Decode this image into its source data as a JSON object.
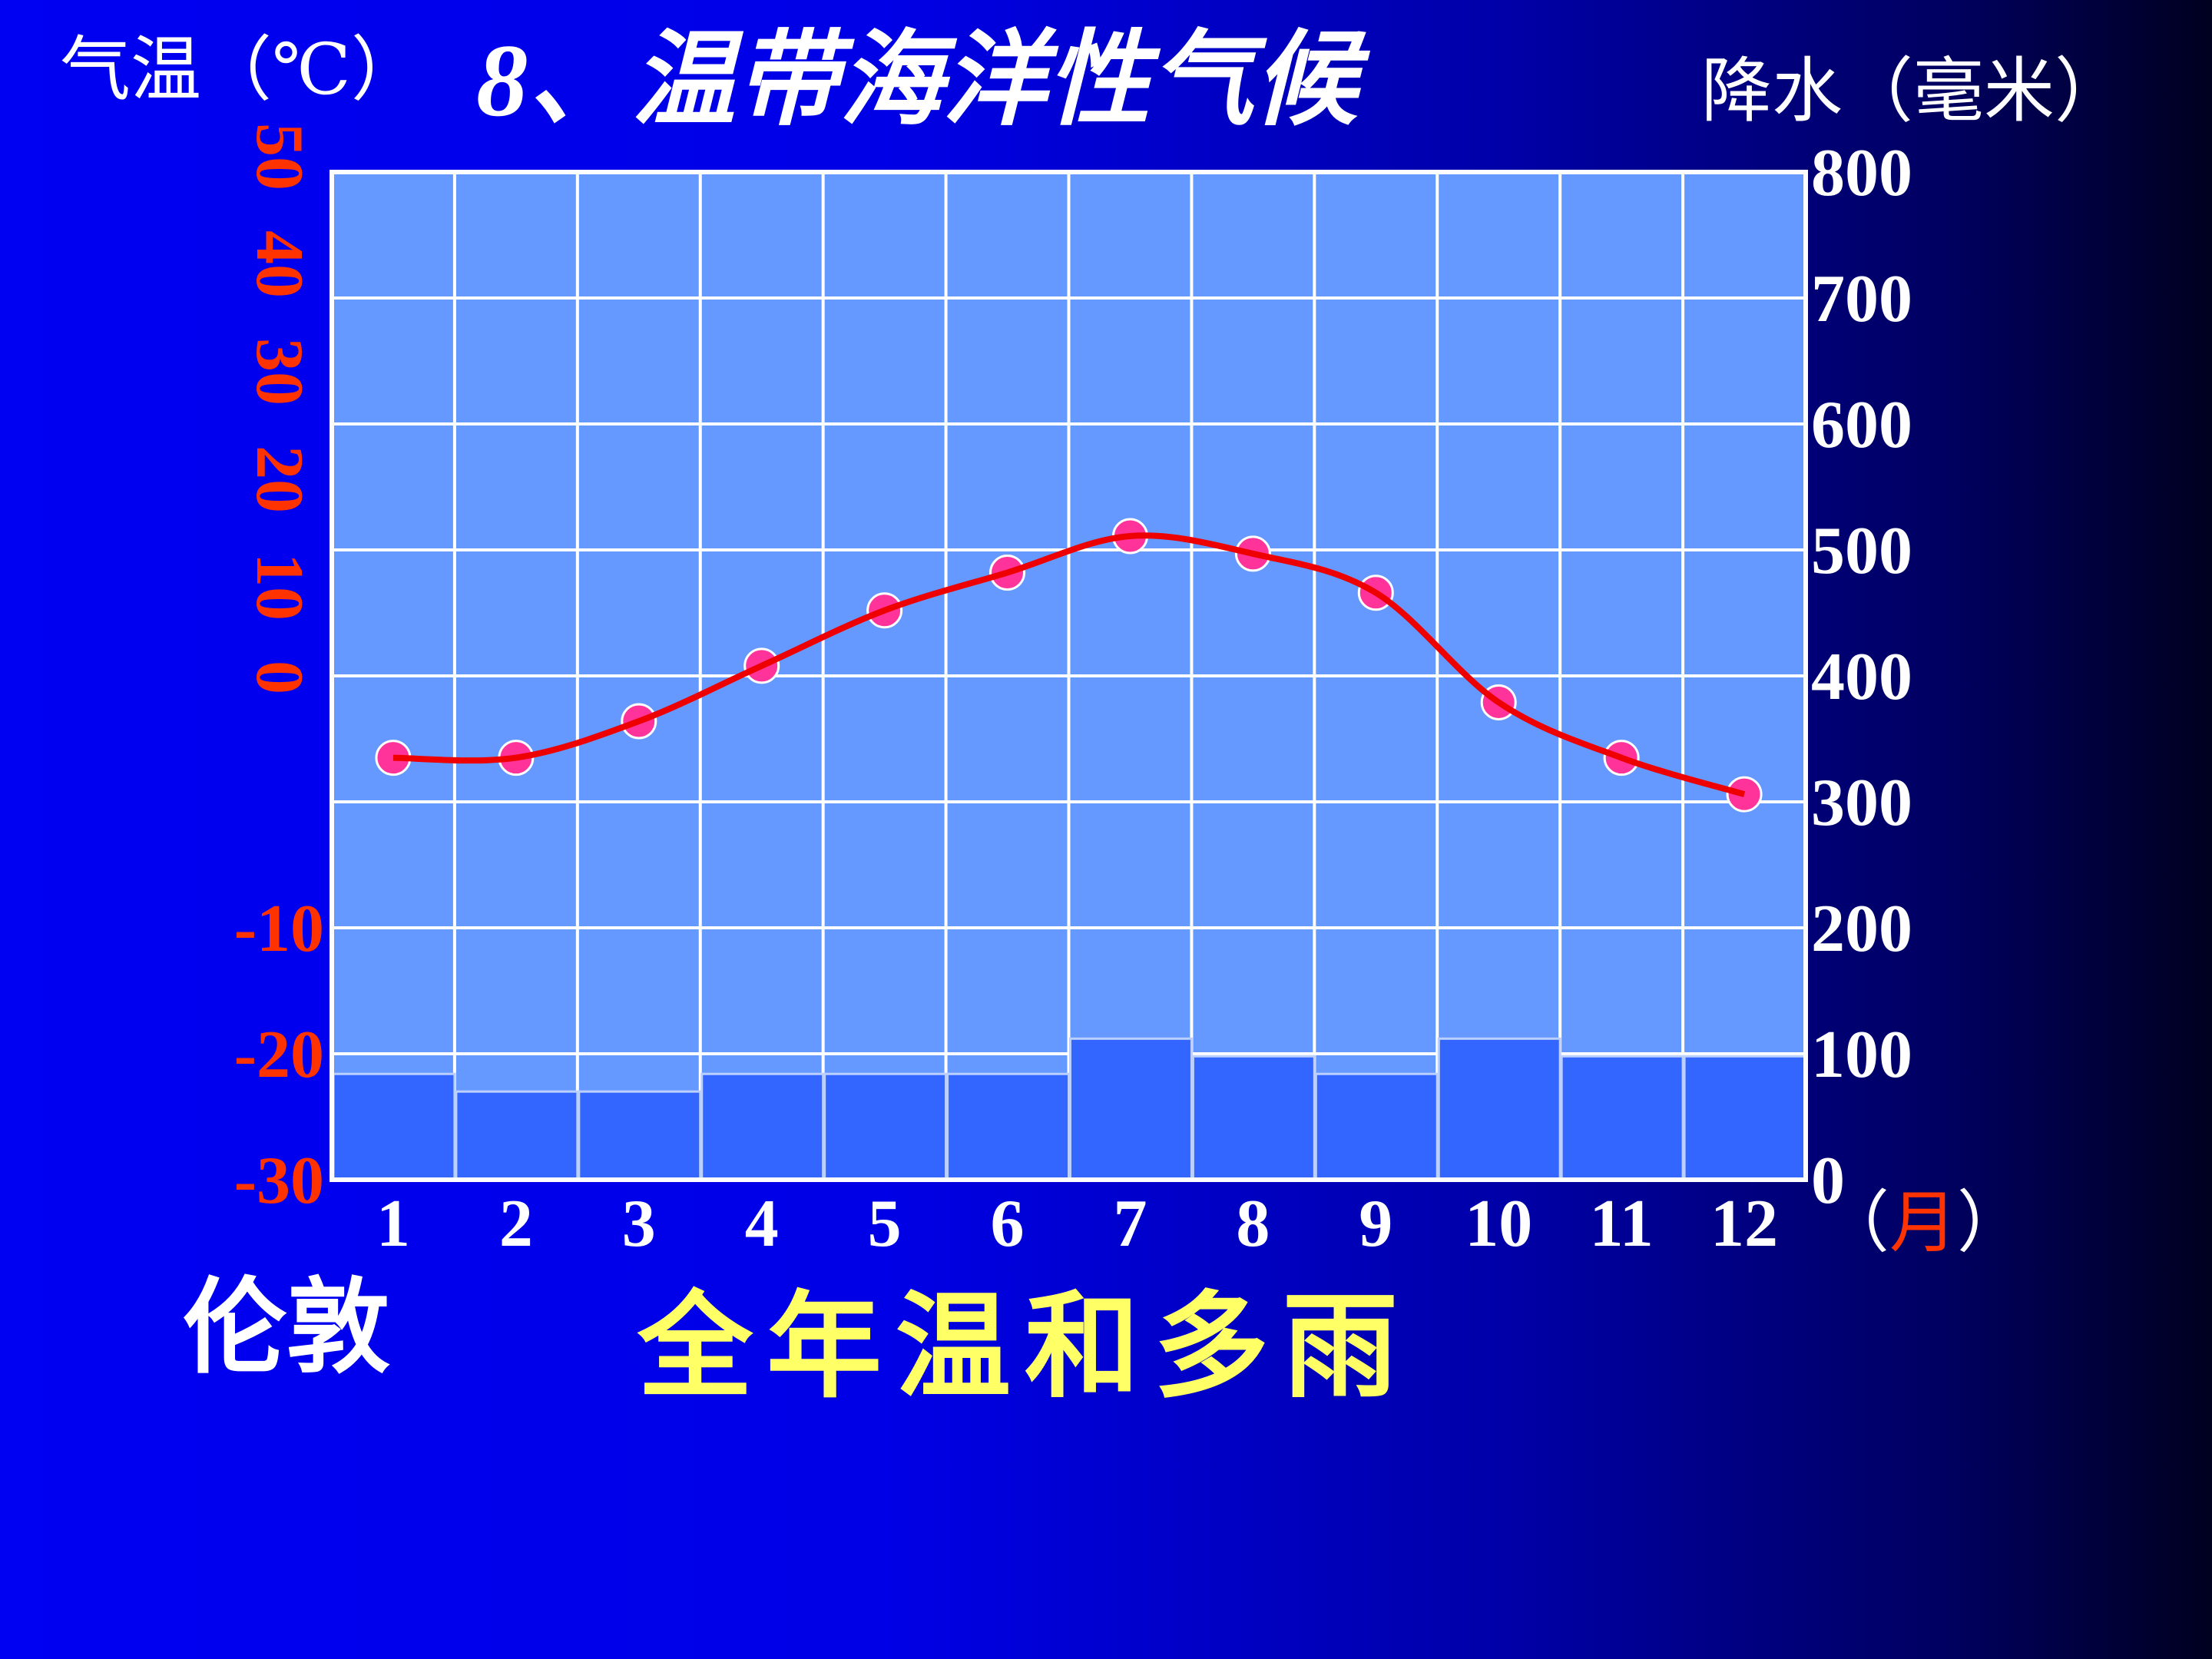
{
  "slide": {
    "title": "8、温带海洋性气候",
    "city": "伦敦",
    "summary": "全年温和多雨"
  },
  "chart_data": {
    "type": "bar+line",
    "title": "8、温带海洋性气候",
    "xlabel": "（月）",
    "xlabel_parts": {
      "open": "（",
      "unit": "月",
      "close": "）"
    },
    "categories": [
      "1",
      "2",
      "3",
      "4",
      "5",
      "6",
      "7",
      "8",
      "9",
      "10",
      "11",
      "12"
    ],
    "left_axis": {
      "label": "气温（℃）",
      "ylim": [
        -30,
        50
      ],
      "rotated_ticks": [
        "50",
        "40",
        "30",
        "20",
        "10",
        "0"
      ],
      "ticks": [
        "-10",
        "-20",
        "-30"
      ]
    },
    "right_axis": {
      "label": "降水（毫米）",
      "ylim": [
        0,
        800
      ],
      "ticks": [
        "800",
        "700",
        "600",
        "500",
        "400",
        "300",
        "200",
        "100",
        "0"
      ]
    },
    "grid": true,
    "series": [
      {
        "kind": "line",
        "axis": "left",
        "values": [
          3.5,
          3.5,
          6.4,
          10.8,
          15.2,
          18.2,
          21.1,
          19.7,
          16.6,
          7.9,
          3.5,
          0.6
        ]
      },
      {
        "kind": "bar",
        "axis": "right",
        "values": [
          84,
          70,
          70,
          84,
          84,
          84,
          112,
          98,
          84,
          112,
          98,
          98
        ]
      }
    ],
    "colors": {
      "plot_bg": "#6699ff",
      "bar": "#3366ff",
      "line": "#ee0000",
      "point": "#ff3399",
      "left_ticks": "#ff3300",
      "summary": "#ffff66"
    }
  }
}
